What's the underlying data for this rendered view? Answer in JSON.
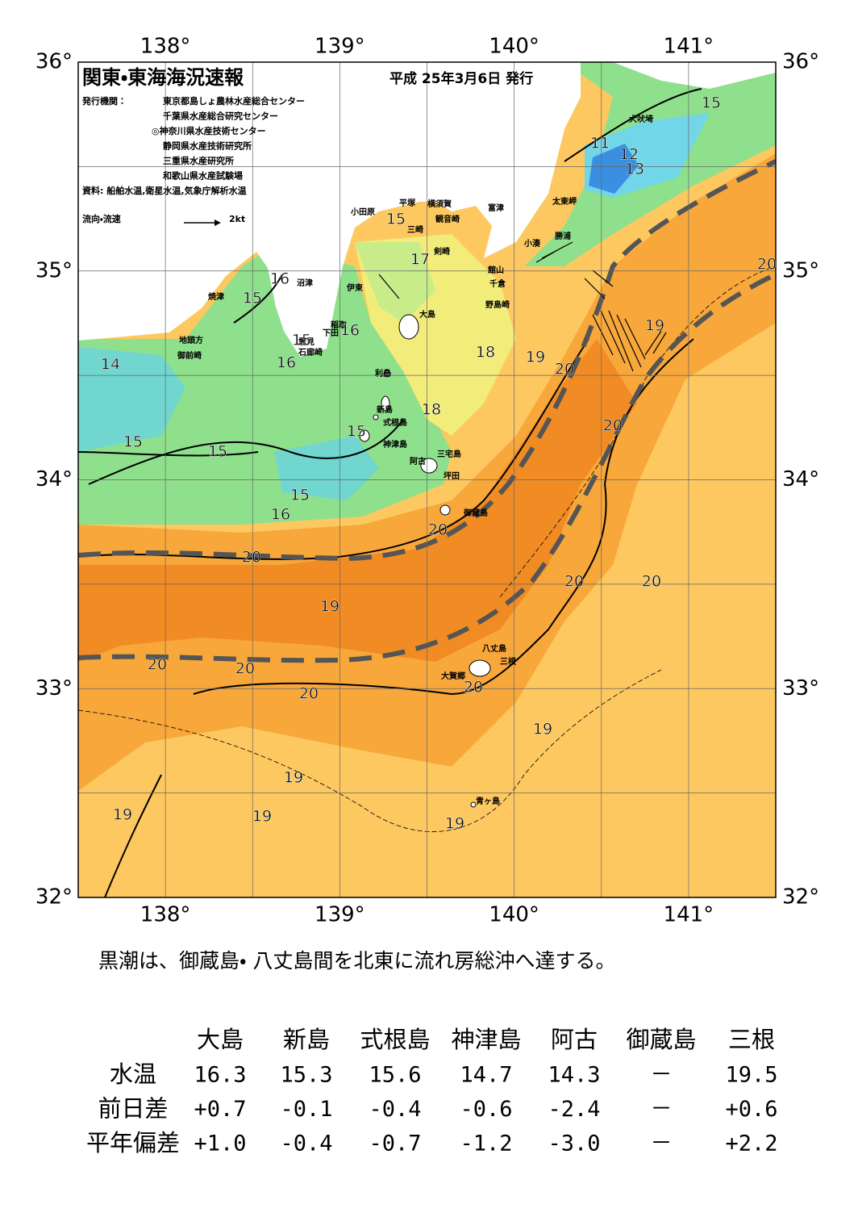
{
  "header": {
    "title": "関東・東海海況速報",
    "date": "平成 25年3月6日 発行",
    "issuer_label": "発行機関：",
    "issuers": [
      "東京都島しょ農林水産総合センター",
      "千葉県水産総合研究センター",
      "◎神奈川県水産技術センター",
      "静岡県水産技術研究所",
      "三重県水産研究所",
      "和歌山県水産試験場"
    ],
    "source": "資料: 船舶水温,衛星水温,気象庁解析水温",
    "current_legend": "流向・流速",
    "current_scale": "2kt"
  },
  "map": {
    "lon_labels": [
      "138°",
      "139°",
      "140°",
      "141°"
    ],
    "lat_labels": [
      "36°",
      "35°",
      "34°",
      "33°",
      "32°"
    ],
    "places": [
      "犬吠埼",
      "太東岬",
      "富津",
      "勝浦",
      "小湊",
      "館山",
      "千倉",
      "野島崎",
      "横須賀",
      "観音崎",
      "三崎",
      "剣崎",
      "平塚",
      "小田原",
      "沼津",
      "伊東",
      "稲取",
      "下田",
      "雲見",
      "石廊崎",
      "焼津",
      "地頭方",
      "御前崎",
      "大島",
      "利島",
      "新島",
      "式根島",
      "神津島",
      "三宅島",
      "阿古",
      "坪田",
      "御蔵島",
      "八丈島",
      "三根",
      "大賀郷",
      "青ヶ島"
    ],
    "isotherm_labels": [
      15,
      11,
      12,
      13,
      15,
      17,
      16,
      15,
      15,
      16,
      16,
      14,
      18,
      19,
      20,
      19,
      20,
      18,
      15,
      15,
      15,
      20,
      15,
      16,
      20,
      20,
      20,
      19,
      20,
      20,
      20,
      20,
      20,
      19,
      19,
      19,
      19,
      19
    ]
  },
  "caption": "黒潮は、御蔵島・ 八丈島間を北東に流れ房総沖へ達する。",
  "table": {
    "columns": [
      "大島",
      "新島",
      "式根島",
      "神津島",
      "阿古",
      "御蔵島",
      "三根"
    ],
    "rows": [
      {
        "label": "水温",
        "values": [
          "16.3",
          "15.3",
          "15.6",
          "14.7",
          "14.3",
          "－",
          "19.5"
        ]
      },
      {
        "label": "前日差",
        "values": [
          "+0.7",
          "-0.1",
          "-0.4",
          "-0.6",
          "-2.4",
          "－",
          "+0.6"
        ]
      },
      {
        "label": "平年偏差",
        "values": [
          "+1.0",
          "-0.4",
          "-0.7",
          "-1.2",
          "-3.0",
          "－",
          "+2.2"
        ]
      }
    ]
  }
}
